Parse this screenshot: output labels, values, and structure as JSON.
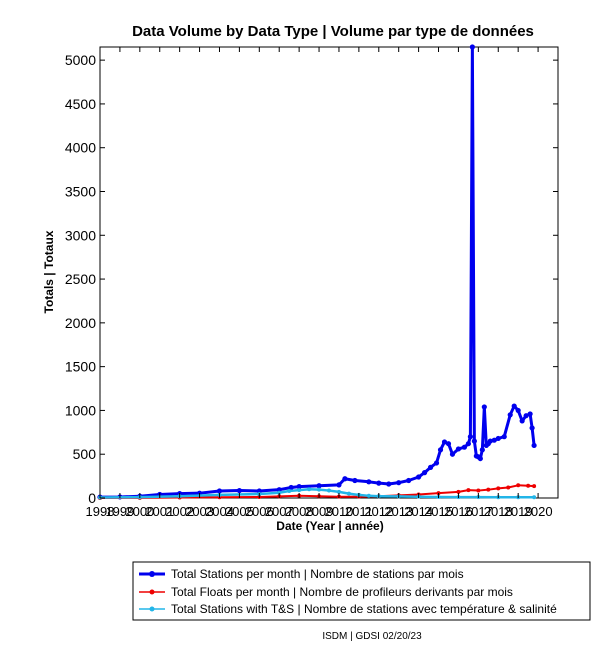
{
  "chart_data": {
    "type": "line",
    "title": "Data Volume by Data Type | Volume par type de données",
    "xlabel": "Date (Year | année)",
    "ylabel": "Totals | Totaux",
    "xlim": [
      1998,
      2021
    ],
    "ylim": [
      0,
      5150
    ],
    "yticks": [
      0,
      500,
      1000,
      1500,
      2000,
      2500,
      3000,
      3500,
      4000,
      4500,
      5000
    ],
    "ytick_labels": [
      "0",
      "500",
      "1000",
      "1500",
      "2000",
      "2500",
      "3000",
      "3500",
      "4000",
      "4500",
      "5000"
    ],
    "xticks": [
      1998,
      1999,
      2000,
      2001,
      2002,
      2003,
      2004,
      2005,
      2006,
      2007,
      2008,
      2009,
      2010,
      2011,
      2012,
      2013,
      2014,
      2015,
      2016,
      2017,
      2018,
      2019,
      2020
    ],
    "xtick_labels": [
      "1998",
      "1999",
      "2000",
      "2001",
      "2002",
      "2003",
      "2004",
      "2005",
      "2006",
      "2007",
      "2008",
      "2009",
      "2010",
      "2011",
      "2012",
      "2013",
      "2014",
      "2015",
      "2016",
      "2017",
      "2018",
      "2019",
      "2020"
    ],
    "grid": false,
    "legend_position": "bottom",
    "series": [
      {
        "name": "Total Stations per month | Nombre de stations par mois",
        "color": "#0000ee",
        "x": [
          1998.0,
          1999.0,
          2000.0,
          2001.0,
          2002.0,
          2003.0,
          2004.0,
          2005.0,
          2006.0,
          2007.0,
          2007.6,
          2008.0,
          2009.0,
          2010.0,
          2010.3,
          2010.8,
          2011.5,
          2012.0,
          2012.5,
          2013.0,
          2013.5,
          2014.0,
          2014.3,
          2014.6,
          2014.9,
          2015.1,
          2015.3,
          2015.5,
          2015.7,
          2016.0,
          2016.3,
          2016.5,
          2016.6,
          2016.7,
          2016.8,
          2016.9,
          2017.0,
          2017.1,
          2017.2,
          2017.3,
          2017.4,
          2017.5,
          2017.6,
          2017.8,
          2018.0,
          2018.3,
          2018.6,
          2018.8,
          2019.0,
          2019.2,
          2019.4,
          2019.6,
          2019.7,
          2019.8
        ],
        "y": [
          10,
          12,
          20,
          40,
          50,
          55,
          80,
          85,
          80,
          95,
          120,
          130,
          140,
          150,
          220,
          200,
          185,
          170,
          160,
          175,
          200,
          240,
          290,
          350,
          400,
          550,
          640,
          620,
          500,
          560,
          580,
          620,
          700,
          5150,
          650,
          480,
          470,
          450,
          550,
          1040,
          600,
          620,
          650,
          660,
          680,
          700,
          950,
          1050,
          1000,
          880,
          940,
          960,
          800,
          600
        ]
      },
      {
        "name": "Total Floats per month | Nombre de profileurs derivants par mois",
        "color": "#ee0000",
        "x": [
          1998.0,
          2000.0,
          2002.0,
          2004.0,
          2006.0,
          2007.0,
          2008.0,
          2009.0,
          2010.0,
          2011.0,
          2012.0,
          2013.0,
          2014.0,
          2015.0,
          2016.0,
          2016.5,
          2017.0,
          2017.5,
          2018.0,
          2018.5,
          2019.0,
          2019.5,
          2019.8
        ],
        "y": [
          0,
          2,
          5,
          8,
          12,
          18,
          25,
          20,
          15,
          15,
          20,
          30,
          40,
          55,
          70,
          90,
          85,
          95,
          110,
          120,
          145,
          140,
          135
        ]
      },
      {
        "name": "Total Stations with T&S | Nombre de stations avec température & salinité",
        "color": "#22b5e8",
        "x": [
          1998.0,
          2000.0,
          2002.0,
          2004.0,
          2006.0,
          2007.0,
          2007.5,
          2008.0,
          2008.5,
          2009.0,
          2009.5,
          2010.0,
          2010.5,
          2011.0,
          2011.5,
          2012.0,
          2013.0,
          2014.0,
          2015.0,
          2016.0,
          2017.0,
          2018.0,
          2019.0,
          2019.8
        ],
        "y": [
          5,
          10,
          20,
          35,
          45,
          60,
          80,
          90,
          100,
          95,
          85,
          70,
          50,
          35,
          25,
          20,
          18,
          15,
          12,
          10,
          10,
          8,
          8,
          8
        ]
      }
    ]
  },
  "footer": "ISDM | GDSI 02/20/23"
}
